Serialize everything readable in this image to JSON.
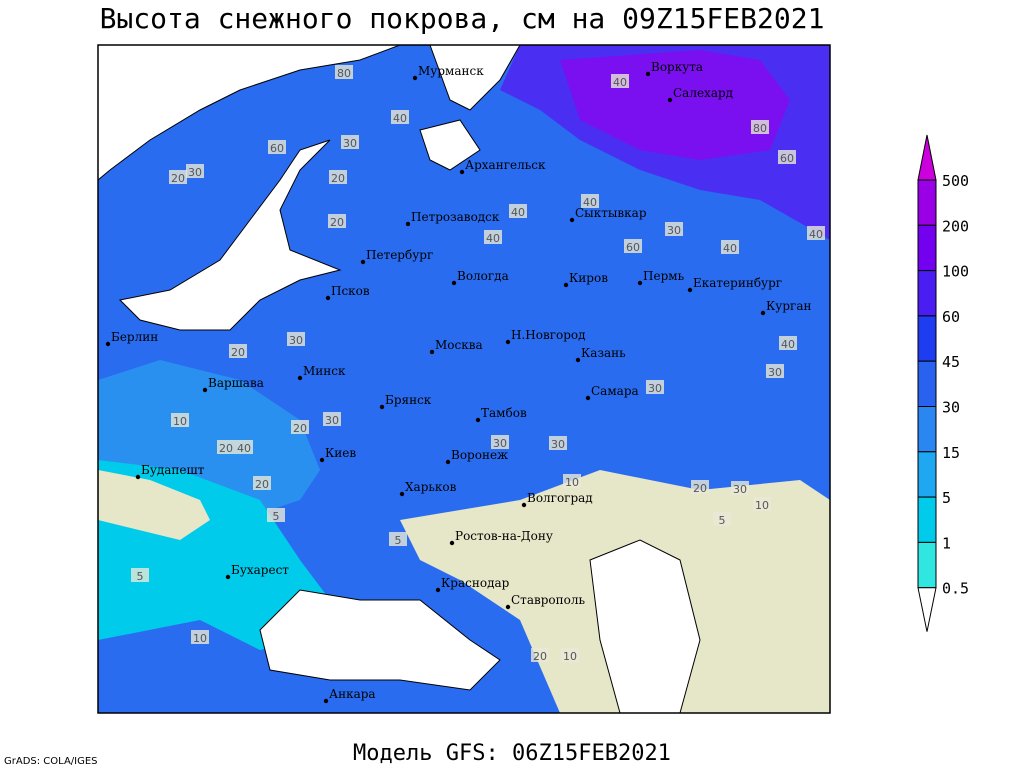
{
  "header": {
    "title": "Высота снежного покрова, см на 09Z15FEB2021"
  },
  "footer": {
    "model": "Модель GFS: 06Z15FEB2021",
    "credit": "GrADS: COLA/IGES"
  },
  "legend": {
    "levels": [
      500,
      200,
      100,
      60,
      45,
      30,
      15,
      5,
      1,
      0.5
    ],
    "colors": [
      "#cc00dd",
      "#9a00e6",
      "#7400f0",
      "#4a1ef2",
      "#1e3cf0",
      "#2a62f0",
      "#2a86f0",
      "#1ea8f2",
      "#00cbeb",
      "#30e6e0",
      "#a8f4f4",
      "#ffffff"
    ]
  },
  "map": {
    "cities": [
      "Мурманск",
      "Воркута",
      "Салехард",
      "Архангельск",
      "Сыктывкар",
      "Петрозаводск",
      "Петербург",
      "Вологда",
      "Киров",
      "Пермь",
      "Екатеринбург",
      "Курган",
      "Псков",
      "Берлин",
      "Н.Новгород",
      "Москва",
      "Казань",
      "Минск",
      "Варшава",
      "Самара",
      "Брянск",
      "Тамбов",
      "Киев",
      "Воронеж",
      "Будапешт",
      "Харьков",
      "Волгоград",
      "Ростов-на-Дону",
      "Бухарест",
      "Краснодар",
      "Ставрополь",
      "Анкара"
    ],
    "contour_labels": [
      80,
      40,
      60,
      60,
      20,
      20,
      30,
      40,
      40,
      40,
      60,
      80,
      40,
      20,
      30,
      40,
      40,
      30,
      40,
      20,
      30,
      30,
      30,
      20,
      30,
      40,
      30,
      10,
      20,
      30,
      20,
      10,
      5,
      5,
      20,
      30,
      10,
      5,
      10,
      5,
      10,
      20
    ]
  }
}
